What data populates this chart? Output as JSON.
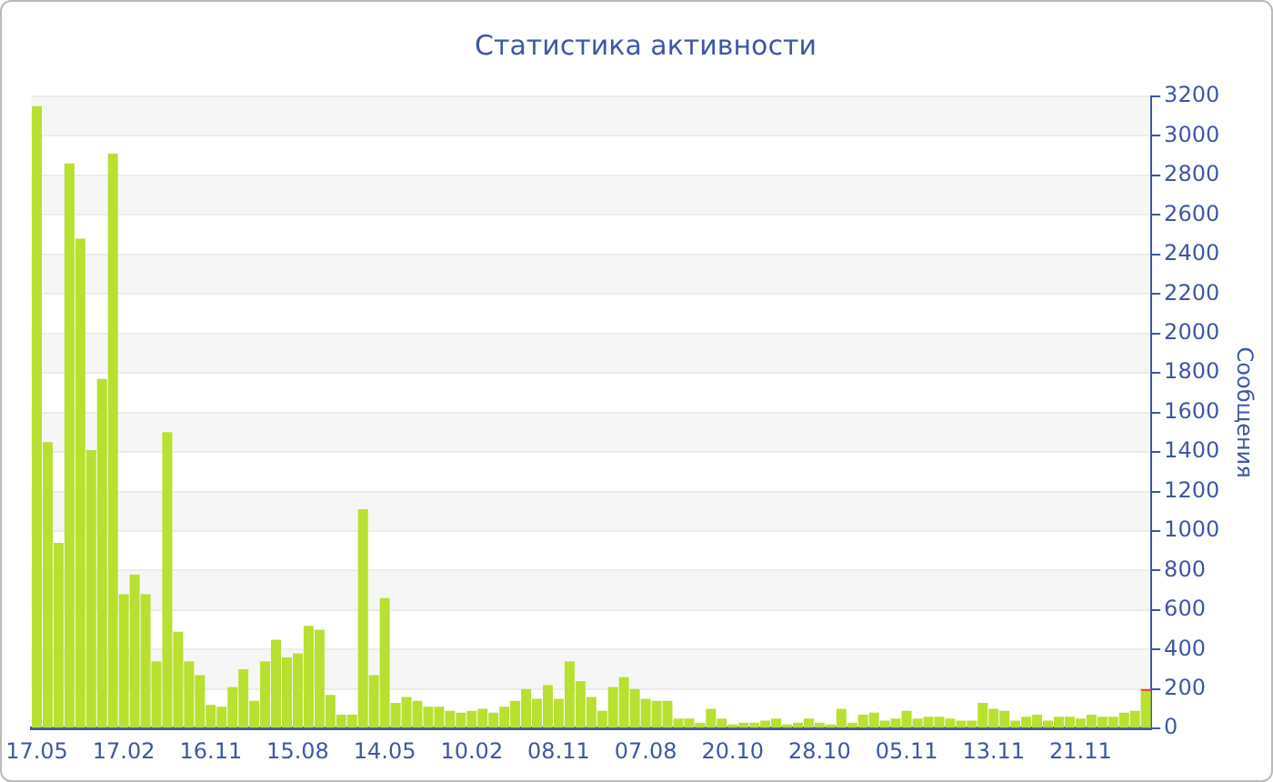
{
  "chart_data": {
    "type": "bar",
    "title": "Статистика активности",
    "ylabel": "Сообщения",
    "stacked": true,
    "grid": "y",
    "legend": false,
    "categories": [
      "17.05",
      null,
      null,
      null,
      null,
      null,
      null,
      null,
      "17.02",
      null,
      null,
      null,
      null,
      null,
      null,
      null,
      "16.11",
      null,
      null,
      null,
      null,
      null,
      null,
      null,
      "15.08",
      null,
      null,
      null,
      null,
      null,
      null,
      null,
      "14.05",
      null,
      null,
      null,
      null,
      null,
      null,
      null,
      "10.02",
      null,
      null,
      null,
      null,
      null,
      null,
      null,
      "08.11",
      null,
      null,
      null,
      null,
      null,
      null,
      null,
      "07.08",
      null,
      null,
      null,
      null,
      null,
      null,
      null,
      "20.10",
      null,
      null,
      null,
      null,
      null,
      null,
      null,
      "28.10",
      null,
      null,
      null,
      null,
      null,
      null,
      null,
      "05.11",
      null,
      null,
      null,
      null,
      null,
      null,
      null,
      "13.11",
      null,
      null,
      null,
      null,
      null,
      null,
      null,
      "21.11",
      null,
      null,
      null,
      null,
      null,
      null
    ],
    "series": [
      {
        "color": "#b8e030",
        "values": [
          3150,
          1450,
          940,
          2860,
          2480,
          1410,
          1770,
          2910,
          680,
          780,
          680,
          340,
          1500,
          490,
          340,
          270,
          120,
          110,
          210,
          300,
          140,
          340,
          450,
          360,
          380,
          520,
          500,
          170,
          70,
          70,
          1110,
          270,
          660,
          130,
          160,
          140,
          110,
          110,
          90,
          80,
          90,
          100,
          80,
          110,
          140,
          200,
          150,
          220,
          150,
          340,
          240,
          160,
          90,
          210,
          260,
          200,
          150,
          140,
          140,
          50,
          50,
          30,
          100,
          50,
          20,
          30,
          30,
          40,
          50,
          20,
          30,
          50,
          30,
          20,
          100,
          30,
          70,
          80,
          40,
          50,
          90,
          50,
          60,
          60,
          50,
          40,
          40,
          130,
          100,
          90,
          40,
          60,
          70,
          40,
          60,
          60,
          50,
          70,
          60,
          60,
          80,
          90,
          190
        ]
      },
      {
        "color": "#e8502a",
        "values": [
          null,
          null,
          null,
          null,
          null,
          null,
          null,
          null,
          null,
          null,
          null,
          null,
          null,
          null,
          null,
          null,
          null,
          null,
          null,
          null,
          null,
          null,
          null,
          null,
          null,
          null,
          null,
          null,
          null,
          null,
          null,
          null,
          null,
          null,
          null,
          null,
          null,
          null,
          null,
          null,
          null,
          null,
          null,
          null,
          null,
          null,
          null,
          null,
          null,
          null,
          null,
          null,
          null,
          null,
          null,
          null,
          null,
          null,
          null,
          null,
          null,
          null,
          null,
          null,
          null,
          null,
          null,
          null,
          null,
          null,
          null,
          null,
          null,
          null,
          null,
          null,
          null,
          null,
          null,
          null,
          null,
          null,
          null,
          null,
          null,
          null,
          null,
          null,
          null,
          null,
          null,
          null,
          null,
          null,
          null,
          null,
          null,
          null,
          null,
          null,
          null,
          null,
          10
        ]
      }
    ],
    "ylim": [
      0,
      3200
    ],
    "yticks": [
      0,
      200,
      400,
      600,
      800,
      1000,
      1200,
      1400,
      1600,
      1800,
      2000,
      2200,
      2400,
      2600,
      2800,
      3000,
      3200
    ]
  }
}
